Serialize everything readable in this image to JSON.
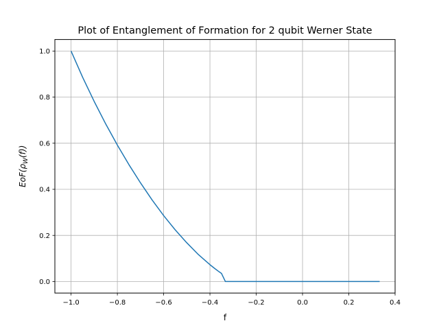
{
  "chart_data": {
    "type": "line",
    "title": "Plot of Entanglement of Formation for 2 qubit Werner State",
    "xlabel": "f",
    "ylabel": {
      "prefix": "EoF(",
      "rho": "ρ",
      "sub": "W",
      "suffix": "(f))"
    },
    "xlim": [
      -1.07,
      0.4
    ],
    "ylim": [
      -0.05,
      1.05
    ],
    "xticks": [
      -1.0,
      -0.8,
      -0.6,
      -0.4,
      -0.2,
      0.0,
      0.2,
      0.4
    ],
    "xtick_labels": [
      "−1.0",
      "−0.8",
      "−0.6",
      "−0.4",
      "−0.2",
      "0.0",
      "0.2",
      "0.4"
    ],
    "yticks": [
      0.0,
      0.2,
      0.4,
      0.6,
      0.8,
      1.0
    ],
    "ytick_labels": [
      "0.0",
      "0.2",
      "0.4",
      "0.6",
      "0.8",
      "1.0"
    ],
    "grid": true,
    "series": [
      {
        "color": "#1f77b4",
        "x": [
          -1.0,
          -0.95,
          -0.9,
          -0.85,
          -0.8,
          -0.75,
          -0.7,
          -0.65,
          -0.6,
          -0.55,
          -0.5,
          -0.45,
          -0.4,
          -0.38,
          -0.36,
          -0.35,
          -0.3333,
          -0.3,
          -0.2,
          -0.1,
          0.0,
          0.1,
          0.2,
          0.3,
          0.3333
        ],
        "y": [
          1.0,
          0.886,
          0.781,
          0.683,
          0.592,
          0.507,
          0.428,
          0.354,
          0.286,
          0.224,
          0.168,
          0.117,
          0.073,
          0.057,
          0.042,
          0.035,
          0.0,
          0.0,
          0.0,
          0.0,
          0.0,
          0.0,
          0.0,
          0.0,
          0.0
        ]
      }
    ]
  }
}
